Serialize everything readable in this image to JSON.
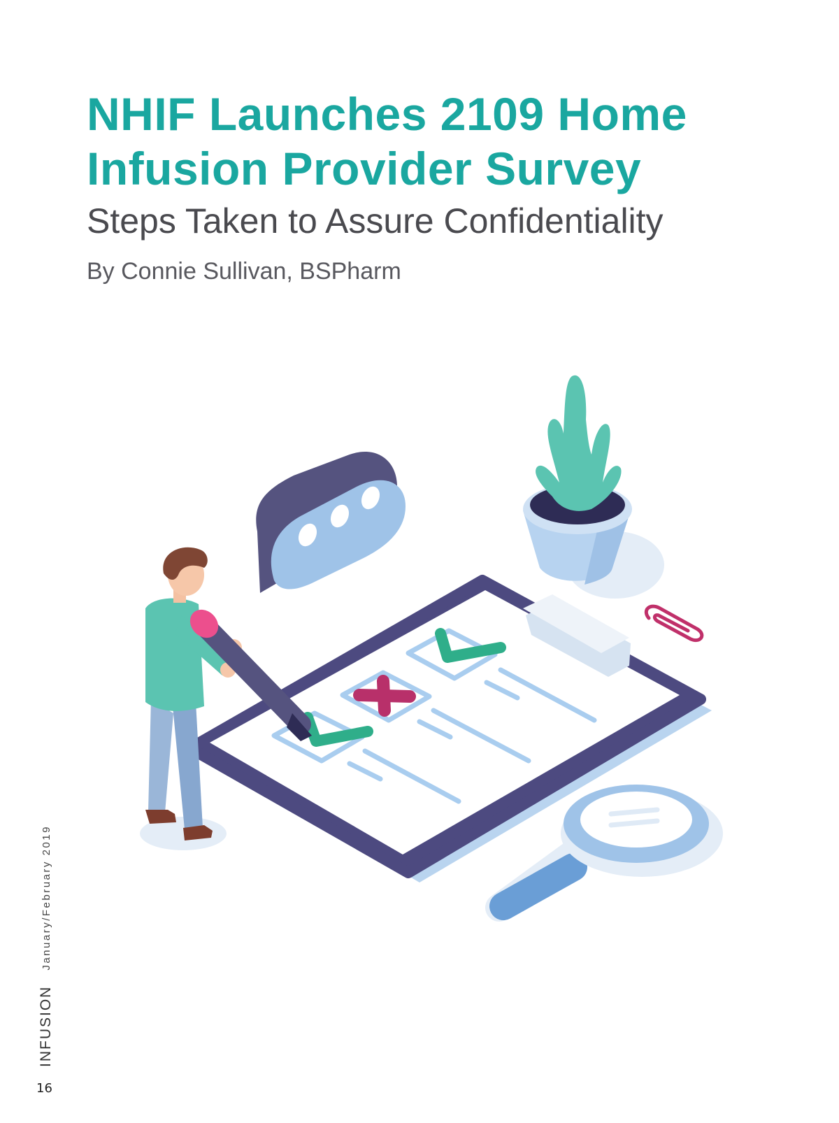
{
  "article": {
    "title_line1": "NHIF Launches 2109 Home",
    "title_line2": "Infusion Provider Survey",
    "subtitle": "Steps Taken to Assure Confidentiality",
    "byline": "By Connie Sullivan, BSPharm"
  },
  "sidebar": {
    "magazine_name": "INFUSION",
    "issue_date": "January/February 2019"
  },
  "page_number": "16",
  "colors": {
    "title": "#1aa7a0",
    "subtitle": "#4a4a4f",
    "clipboard": "#4d4a80",
    "accent_green": "#2fae8a",
    "accent_red": "#b8306a",
    "light_blue": "#9cc3e6"
  },
  "illustration": {
    "icons": [
      "speech-bubble-icon",
      "potted-plant-icon",
      "clipboard-icon",
      "checkmark-icon",
      "cross-icon",
      "paperclip-icon",
      "magnifying-glass-icon",
      "person-with-pencil-icon"
    ]
  }
}
